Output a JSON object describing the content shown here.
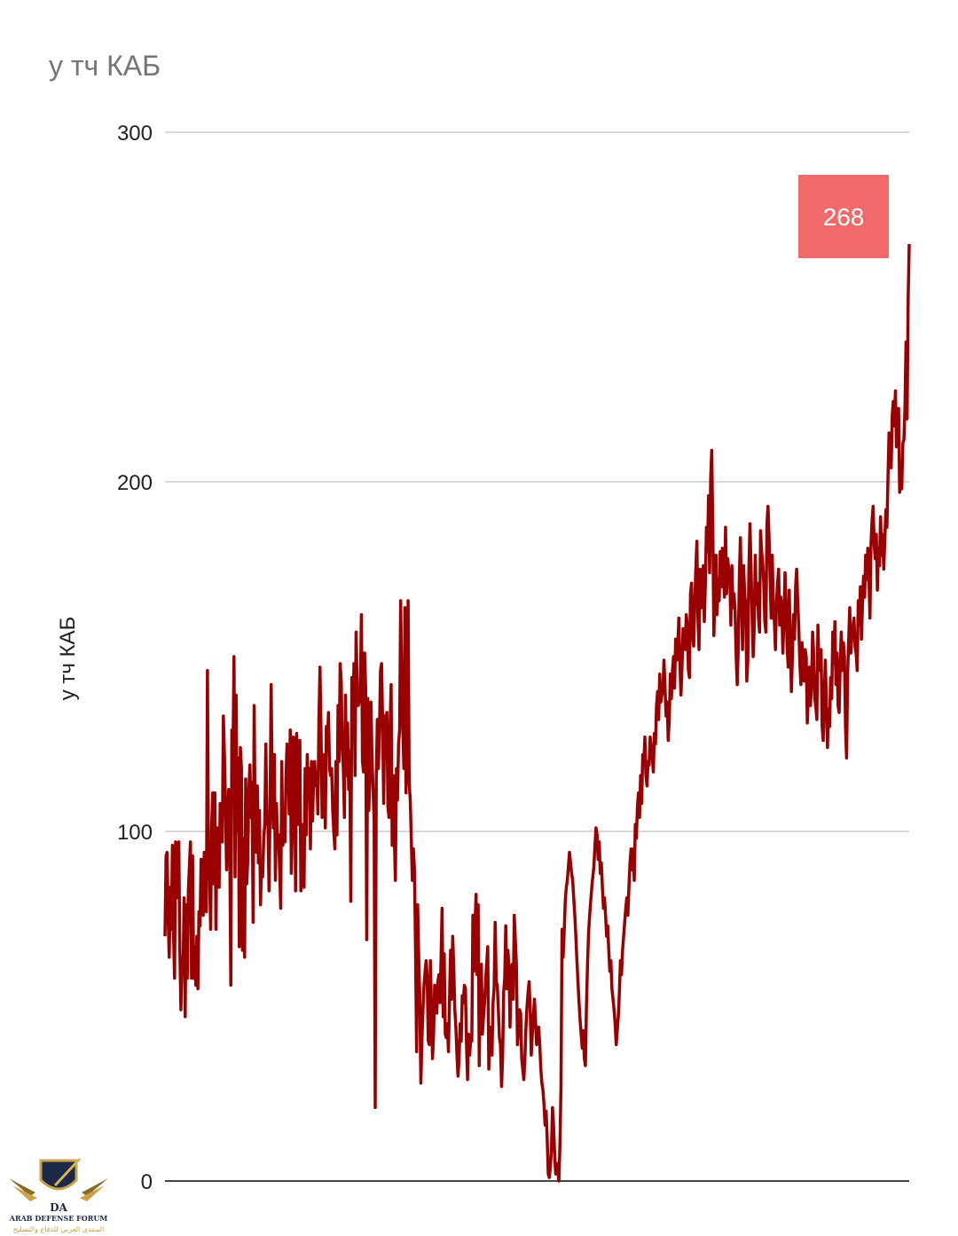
{
  "chart_data": {
    "type": "line",
    "title": "у тч КАБ",
    "ylabel": "у тч КАБ",
    "xlabel": "",
    "ylim": [
      0,
      300
    ],
    "yticks": [
      0,
      100,
      200,
      300
    ],
    "grid": true,
    "annotation": {
      "text": "268",
      "color": "#f06a6a"
    },
    "series": [
      {
        "color": "#9a0000",
        "values": [
          70,
          93,
          94,
          75,
          64,
          84,
          72,
          96,
          72,
          58,
          97,
          81,
          96,
          97,
          66,
          49,
          64,
          59,
          81,
          47,
          79,
          58,
          83,
          90,
          97,
          58,
          93,
          58,
          67,
          56,
          70,
          55,
          77,
          73,
          92,
          89,
          76,
          94,
          85,
          77,
          146,
          90,
          88,
          72,
          102,
          111,
          85,
          111,
          72,
          101,
          94,
          84,
          108,
          103,
          97,
          133,
          122,
          108,
          89,
          101,
          112,
          96,
          56,
          129,
          121,
          150,
          87,
          139,
          100,
          121,
          67,
          124,
          118,
          66,
          98,
          64,
          115,
          85,
          92,
          112,
          119,
          104,
          114,
          74,
          136,
          99,
          94,
          113,
          91,
          106,
          79,
          92,
          87,
          98,
          102,
          125,
          103,
          102,
          83,
          108,
          142,
          112,
          101,
          122,
          86,
          108,
          98,
          99,
          89,
          78,
          120,
          96,
          103,
          97,
          116,
          125,
          124,
          105,
          129,
          88,
          102,
          127,
          126,
          83,
          128,
          117,
          102,
          126,
          83,
          102,
          100,
          84,
          118,
          99,
          122,
          111,
          118,
          95,
          120,
          103,
          115,
          120,
          113,
          117,
          105,
          132,
          147,
          128,
          104,
          122,
          121,
          101,
          130,
          125,
          134,
          118,
          116,
          118,
          106,
          100,
          95,
          120,
          99,
          136,
          120,
          148,
          143,
          124,
          118,
          104,
          139,
          116,
          131,
          112,
          123,
          80,
          144,
          131,
          148,
          116,
          157,
          142,
          136,
          137,
          141,
          162,
          120,
          117,
          151,
          141,
          69,
          138,
          106,
          116,
          137,
          121,
          112,
          103,
          21,
          115,
          132,
          118,
          128,
          146,
          148,
          131,
          108,
          133,
          129,
          134,
          107,
          104,
          130,
          142,
          96,
          116,
          99,
          86,
          118,
          109,
          125,
          129,
          166,
          141,
          130,
          118,
          164,
          111,
          137,
          166,
          114,
          109,
          98,
          86,
          95,
          89,
          66,
          37,
          79,
          64,
          53,
          28,
          40,
          49,
          56,
          60,
          63,
          58,
          40,
          39,
          63,
          49,
          35,
          42,
          56,
          54,
          48,
          57,
          59,
          51,
          63,
          78,
          47,
          65,
          42,
          41,
          45,
          37,
          52,
          66,
          52,
          70,
          61,
          49,
          44,
          36,
          30,
          35,
          45,
          40,
          53,
          51,
          56,
          55,
          39,
          29,
          42,
          36,
          41,
          40,
          76,
          60,
          73,
          82,
          59,
          79,
          33,
          57,
          62,
          42,
          47,
          51,
          57,
          62,
          67,
          32,
          44,
          42,
          36,
          51,
          55,
          74,
          57,
          56,
          49,
          41,
          39,
          27,
          35,
          54,
          58,
          73,
          55,
          66,
          61,
          44,
          58,
          62,
          52,
          76,
          69,
          62,
          39,
          43,
          49,
          48,
          35,
          32,
          29,
          35,
          44,
          50,
          54,
          57,
          49,
          36,
          42,
          47,
          52,
          46,
          39,
          41,
          44,
          39,
          32,
          28,
          26,
          22,
          16,
          20,
          12,
          2,
          1,
          4,
          9,
          21,
          16,
          8,
          2,
          5,
          3,
          0,
          10,
          27,
          72,
          64,
          71,
          80,
          84,
          86,
          90,
          94,
          91,
          88,
          86,
          81,
          76,
          70,
          63,
          57,
          51,
          46,
          42,
          38,
          43,
          35,
          33,
          50,
          62,
          71,
          76,
          80,
          84,
          87,
          90,
          96,
          101,
          99,
          92,
          97,
          88,
          91,
          84,
          78,
          81,
          76,
          70,
          73,
          66,
          60,
          63,
          55,
          52,
          49,
          45,
          39,
          43,
          47,
          54,
          63,
          59,
          66,
          70,
          74,
          78,
          81,
          76,
          84,
          91,
          95,
          89,
          95,
          86,
          102,
          98,
          107,
          111,
          104,
          116,
          108,
          122,
          119,
          127,
          116,
          113,
          120,
          119,
          127,
          124,
          121,
          117,
          128,
          125,
          136,
          140,
          132,
          145,
          137,
          139,
          140,
          149,
          141,
          133,
          137,
          126,
          132,
          145,
          138,
          146,
          150,
          141,
          155,
          149,
          153,
          161,
          148,
          139,
          147,
          158,
          156,
          152,
          162,
          159,
          146,
          144,
          168,
          171,
          156,
          153,
          165,
          175,
          183,
          161,
          152,
          175,
          171,
          164,
          176,
          160,
          171,
          187,
          180,
          196,
          174,
          201,
          209,
          187,
          156,
          168,
          179,
          162,
          172,
          166,
          180,
          170,
          181,
          173,
          167,
          187,
          168,
          178,
          175,
          174,
          159,
          176,
          164,
          168,
          163,
          150,
          142,
          153,
          173,
          184,
          167,
          152,
          176,
          168,
          165,
          143,
          149,
          175,
          188,
          176,
          162,
          150,
          158,
          179,
          165,
          171,
          161,
          157,
          186,
          180,
          177,
          171,
          160,
          157,
          188,
          193,
          184,
          172,
          161,
          179,
          164,
          160,
          152,
          166,
          171,
          175,
          159,
          167,
          164,
          151,
          161,
          174,
          165,
          153,
          147,
          169,
          154,
          140,
          150,
          162,
          155,
          170,
          175,
          166,
          158,
          148,
          142,
          154,
          147,
          143,
          152,
          150,
          131,
          139,
          147,
          136,
          142,
          157,
          151,
          138,
          136,
          132,
          159,
          147,
          146,
          152,
          130,
          126,
          139,
          149,
          136,
          124,
          135,
          130,
          144,
          138,
          157,
          148,
          160,
          142,
          151,
          136,
          134,
          148,
          157,
          146,
          154,
          150,
          130,
          121,
          145,
          155,
          164,
          151,
          156,
          158,
          161,
          153,
          151,
          146,
          166,
          159,
          170,
          155,
          165,
          173,
          167,
          179,
          172,
          181,
          174,
          161,
          182,
          189,
          193,
          182,
          178,
          185,
          169,
          181,
          176,
          190,
          179,
          185,
          175,
          183,
          192,
          187,
          201,
          214,
          206,
          204,
          219,
          223,
          216,
          226,
          210,
          217,
          221,
          197,
          204,
          198,
          211,
          212,
          221,
          240,
          218,
          252,
          268
        ]
      }
    ]
  },
  "watermark": {
    "line1": "ARAB DEFENSE FORUM",
    "line2": "المنتدى العربي للدفاع والتسليح",
    "badge": "DA"
  }
}
